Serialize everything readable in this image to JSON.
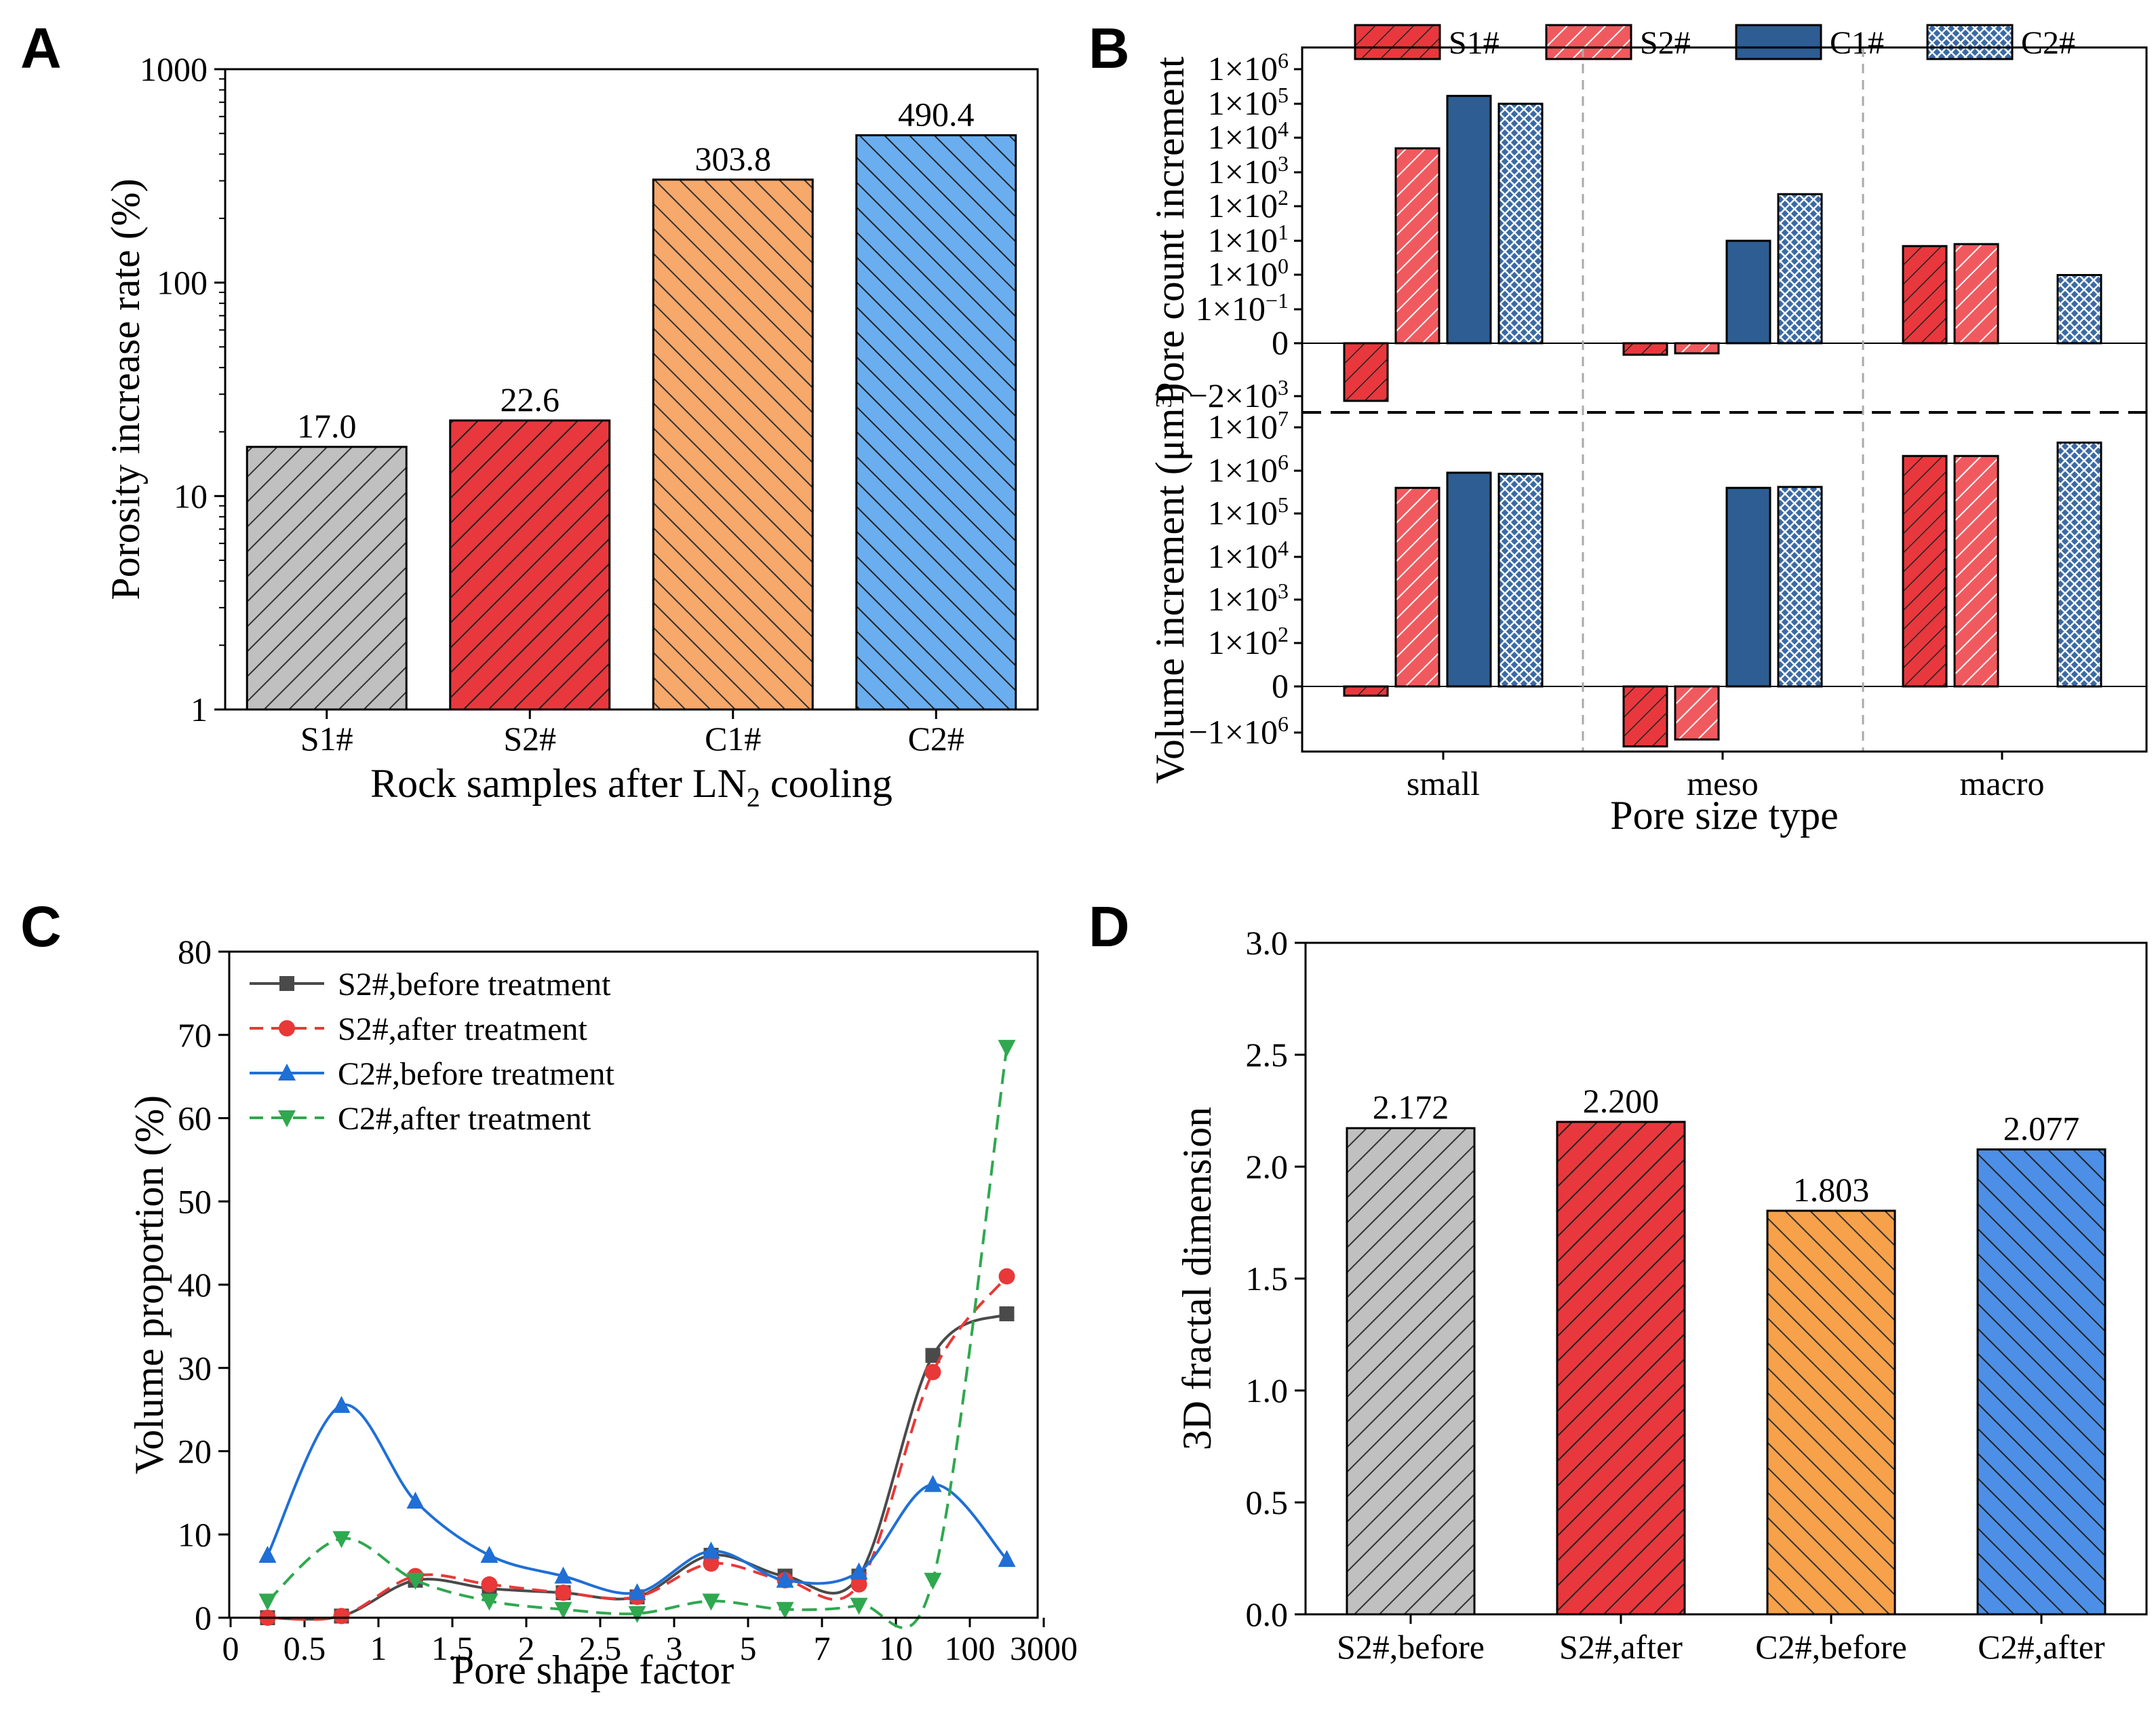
{
  "panels": {
    "A": "A",
    "B": "B",
    "C": "C",
    "D": "D"
  },
  "chart_data": [
    {
      "id": "A",
      "type": "bar",
      "yscale": "log",
      "ylim": [
        1,
        1000
      ],
      "yticks": [
        "1",
        "10",
        "100",
        "1000"
      ],
      "ylabel": "Porosity increase rate (%)",
      "xlabel_main": "Rock samples after LN",
      "xlabel_sub": "2",
      "xlabel_tail": " cooling",
      "categories": [
        "S1#",
        "S2#",
        "C1#",
        "C2#"
      ],
      "values": [
        17.0,
        22.6,
        303.8,
        490.4
      ],
      "value_labels": [
        "17.0",
        "22.6",
        "303.8",
        "490.4"
      ],
      "colors": [
        "#c0c0c0",
        "#e8383d",
        "#f7a86b",
        "#6aaef0"
      ]
    },
    {
      "id": "B",
      "type": "bar",
      "xlabel": "Pore size type",
      "categories": [
        "small",
        "meso",
        "macro"
      ],
      "series": [
        {
          "name": "S1#",
          "color": "#e8383d",
          "pattern": "hatch"
        },
        {
          "name": "S2#",
          "color": "#f4777b",
          "pattern": "hatch-light"
        },
        {
          "name": "C1#",
          "color": "#2d5d92",
          "pattern": "solid"
        },
        {
          "name": "C2#",
          "color": "#3a6aa5",
          "pattern": "cross"
        }
      ],
      "top": {
        "ylabel": "Pore count increment",
        "yticks": [
          {
            "m": "1×10",
            "e": "6"
          },
          {
            "m": "1×10",
            "e": "5"
          },
          {
            "m": "1×10",
            "e": "4"
          },
          {
            "m": "1×10",
            "e": "3"
          },
          {
            "m": "1×10",
            "e": "2"
          },
          {
            "m": "1×10",
            "e": "1"
          },
          {
            "m": "1×10",
            "e": "0"
          },
          {
            "m": "1×10",
            "e": "−1"
          },
          {
            "m": "0",
            "e": ""
          },
          {
            "m": "−2×10",
            "e": "3"
          }
        ],
        "values": {
          "small": [
            -2500,
            5000,
            170000,
            100000
          ],
          "meso": [
            -400,
            -350,
            10,
            230
          ],
          "macro": [
            7,
            8,
            null,
            1
          ]
        }
      },
      "bottom": {
        "ylabel": "Volume increment (μm",
        "ylabel_sup": "3",
        "ylabel_tail": ")",
        "yticks": [
          {
            "m": "1×10",
            "e": "7"
          },
          {
            "m": "1×10",
            "e": "6"
          },
          {
            "m": "1×10",
            "e": "5"
          },
          {
            "m": "1×10",
            "e": "4"
          },
          {
            "m": "1×10",
            "e": "3"
          },
          {
            "m": "1×10",
            "e": "2"
          },
          {
            "m": "0",
            "e": ""
          },
          {
            "m": "−1×10",
            "e": "6"
          }
        ],
        "values": {
          "small": [
            -200000,
            400000,
            900000,
            850000
          ],
          "meso": [
            -1300000,
            -1150000,
            400000,
            420000
          ],
          "macro": [
            2200000,
            2200000,
            null,
            4500000
          ]
        }
      }
    },
    {
      "id": "C",
      "type": "line",
      "ylim": [
        0,
        80
      ],
      "yticks": [
        "0",
        "10",
        "20",
        "30",
        "40",
        "50",
        "60",
        "70",
        "80"
      ],
      "ylabel": "Volume proportion (%)",
      "xlabel": "Pore shape factor",
      "xticks": [
        "0",
        "0.5",
        "1",
        "1.5",
        "2",
        "2.5",
        "3",
        "5",
        "7",
        "10",
        "100",
        "3000"
      ],
      "series": [
        {
          "name": "S2#,before treatment",
          "color": "#4a4a4a",
          "marker": "square",
          "dash": false,
          "values": [
            0,
            0.2,
            4.5,
            3.5,
            3.0,
            2.5,
            7.5,
            5.0,
            5.0,
            31.5,
            36.5
          ]
        },
        {
          "name": "S2#,after treatment",
          "color": "#e83838",
          "marker": "circle",
          "dash": true,
          "values": [
            0,
            0.2,
            5.0,
            4.0,
            3.0,
            2.5,
            6.5,
            4.5,
            4.0,
            29.5,
            41.0
          ]
        },
        {
          "name": "C2#,before treatment",
          "color": "#1f6fd6",
          "marker": "triangle-up",
          "dash": false,
          "values": [
            7.5,
            25.5,
            14.0,
            7.5,
            5.0,
            3.0,
            8.0,
            4.5,
            5.5,
            16.0,
            7.0
          ]
        },
        {
          "name": "C2#,after treatment",
          "color": "#2fa84f",
          "marker": "triangle-down",
          "dash": true,
          "values": [
            2.0,
            9.5,
            4.5,
            2.0,
            1.0,
            0.5,
            2.0,
            1.0,
            1.5,
            4.5,
            68.5
          ]
        }
      ]
    },
    {
      "id": "D",
      "type": "bar",
      "ylim": [
        0.0,
        3.0
      ],
      "yticks": [
        "0.0",
        "0.5",
        "1.0",
        "1.5",
        "2.0",
        "2.5",
        "3.0"
      ],
      "ylabel": "3D fractal dimension",
      "categories": [
        "S2#,before",
        "S2#,after",
        "C2#,before",
        "C2#,after"
      ],
      "values": [
        2.172,
        2.2,
        1.803,
        2.077
      ],
      "value_labels": [
        "2.172",
        "2.200",
        "1.803",
        "2.077"
      ],
      "colors": [
        "#c0c0c0",
        "#e8383d",
        "#f7a14a",
        "#4d8fe6"
      ]
    }
  ]
}
